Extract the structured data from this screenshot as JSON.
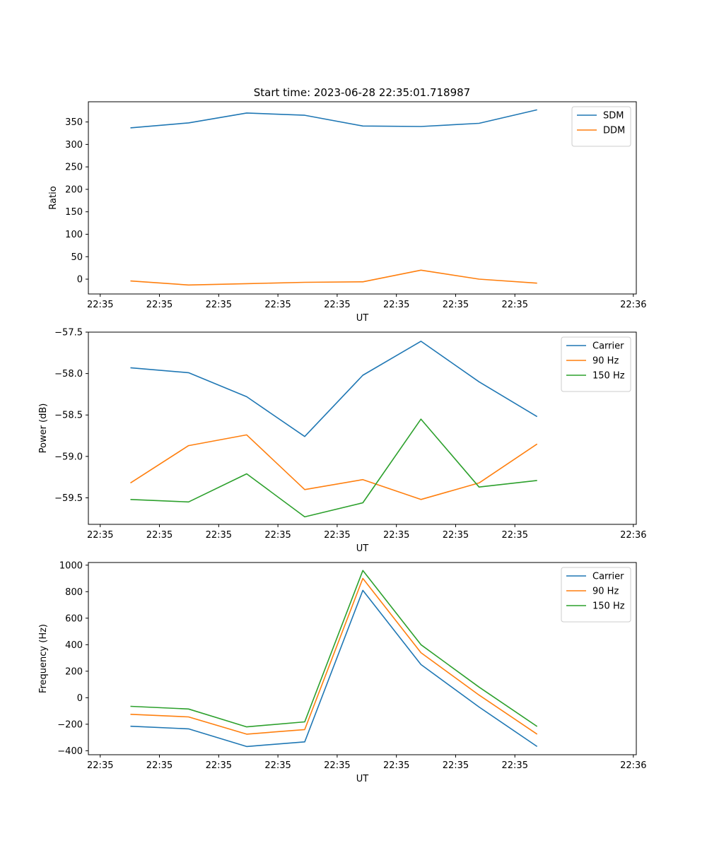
{
  "figure": {
    "title": "Start time: 2023-06-28 22:35:01.718987"
  },
  "chart_data": [
    {
      "type": "line",
      "xlabel": "UT",
      "ylabel": "Ratio",
      "x_tick_labels": [
        "22:35",
        "22:35",
        "22:35",
        "22:35",
        "22:35",
        "22:35",
        "22:35"
      ],
      "x_end_tick_labels": [
        "22:35",
        "22:36"
      ],
      "xlim": [
        -0.3,
        8.7
      ],
      "x": [
        0.5,
        1.5,
        2.5,
        3.5,
        4.5,
        5.5,
        6.5,
        7.5
      ],
      "ylim": [
        -33,
        395
      ],
      "y_ticks": [
        0,
        50,
        100,
        150,
        200,
        250,
        300,
        350
      ],
      "y_tick_labels": [
        "0",
        "50",
        "100",
        "150",
        "200",
        "250",
        "300",
        "350"
      ],
      "legend_position": "top-right",
      "grid": false,
      "series": [
        {
          "name": "SDM",
          "color": "#1f77b4",
          "values": [
            337,
            348,
            370,
            365,
            341,
            340,
            347,
            377
          ]
        },
        {
          "name": "DDM",
          "color": "#ff7f0e",
          "values": [
            -4,
            -13,
            -10,
            -7,
            -6,
            20,
            0,
            -9
          ]
        }
      ]
    },
    {
      "type": "line",
      "xlabel": "UT",
      "ylabel": "Power (dB)",
      "x_tick_labels": [
        "22:35",
        "22:35",
        "22:35",
        "22:35",
        "22:35",
        "22:35",
        "22:35"
      ],
      "x_end_tick_labels": [
        "22:35",
        "22:36"
      ],
      "xlim": [
        -0.3,
        8.7
      ],
      "x": [
        0.5,
        1.5,
        2.5,
        3.5,
        4.5,
        5.5,
        6.5,
        7.5
      ],
      "ylim": [
        -59.82,
        -57.5
      ],
      "y_ticks": [
        -57.5,
        -58.0,
        -58.5,
        -59.0,
        -59.5
      ],
      "y_tick_labels": [
        "−57.5",
        "−58.0",
        "−58.5",
        "−59.0",
        "−59.5"
      ],
      "legend_position": "top-right",
      "grid": false,
      "series": [
        {
          "name": "Carrier",
          "color": "#1f77b4",
          "values": [
            -57.93,
            -57.99,
            -58.28,
            -58.76,
            -58.02,
            -57.61,
            -58.1,
            -58.52
          ]
        },
        {
          "name": "90 Hz",
          "color": "#ff7f0e",
          "values": [
            -59.32,
            -58.87,
            -58.74,
            -59.4,
            -59.28,
            -59.52,
            -59.32,
            -58.85
          ]
        },
        {
          "name": "150 Hz",
          "color": "#2ca02c",
          "values": [
            -59.52,
            -59.55,
            -59.21,
            -59.73,
            -59.56,
            -58.55,
            -59.37,
            -59.29
          ]
        }
      ]
    },
    {
      "type": "line",
      "xlabel": "UT",
      "ylabel": "Frequency (Hz)",
      "x_tick_labels": [
        "22:35",
        "22:35",
        "22:35",
        "22:35",
        "22:35",
        "22:35",
        "22:35"
      ],
      "x_end_tick_labels": [
        "22:35",
        "22:36"
      ],
      "xlim": [
        -0.3,
        8.7
      ],
      "x": [
        0.5,
        1.5,
        2.5,
        3.5,
        4.5,
        5.5,
        6.5,
        7.5
      ],
      "ylim": [
        -430,
        1020
      ],
      "y_ticks": [
        -400,
        -200,
        0,
        200,
        400,
        600,
        800,
        1000
      ],
      "y_tick_labels": [
        "−400",
        "−200",
        "0",
        "200",
        "400",
        "600",
        "800",
        "1000"
      ],
      "legend_position": "top-right",
      "grid": false,
      "series": [
        {
          "name": "Carrier",
          "color": "#1f77b4",
          "values": [
            -215,
            -235,
            -368,
            -333,
            810,
            250,
            -70,
            -368
          ]
        },
        {
          "name": "90 Hz",
          "color": "#ff7f0e",
          "values": [
            -125,
            -145,
            -275,
            -240,
            900,
            340,
            20,
            -275
          ]
        },
        {
          "name": "150 Hz",
          "color": "#2ca02c",
          "values": [
            -65,
            -85,
            -220,
            -182,
            960,
            400,
            80,
            -217
          ]
        }
      ]
    }
  ]
}
